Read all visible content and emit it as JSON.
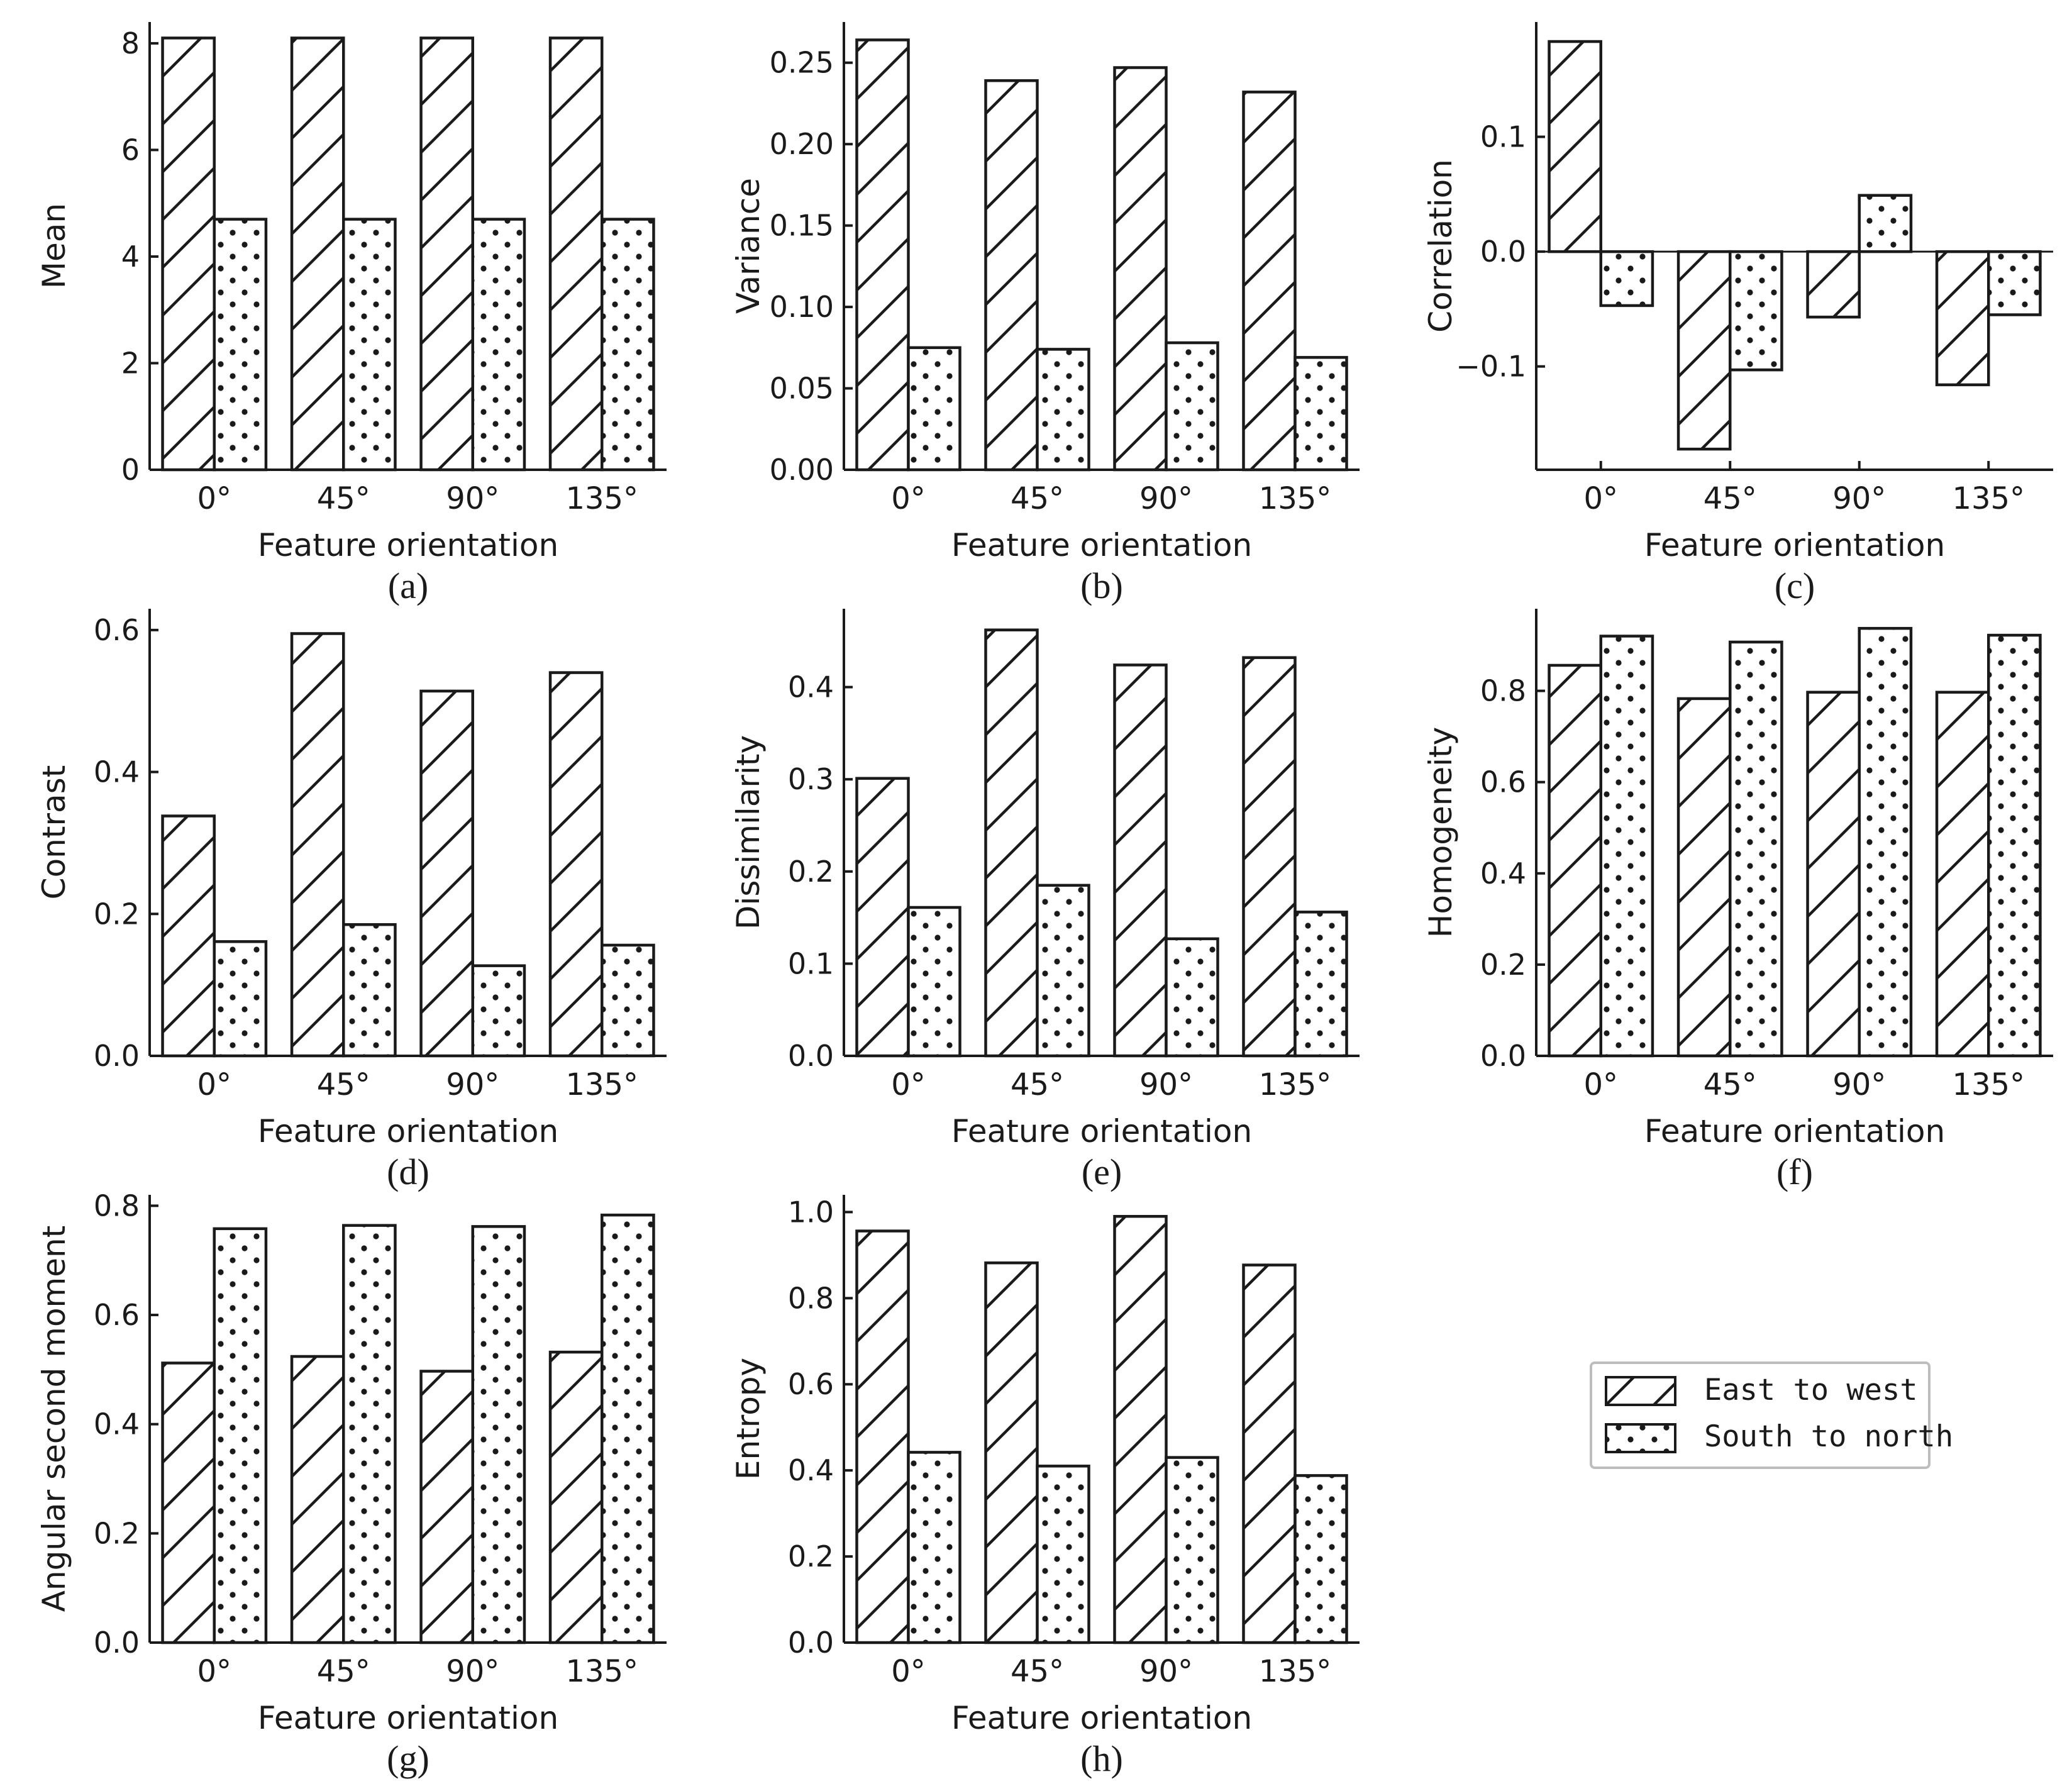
{
  "legend": [
    {
      "name": "East to west",
      "pattern": "hatch"
    },
    {
      "name": "South to north",
      "pattern": "dots"
    }
  ],
  "colors": {
    "stroke": "#1a1a1a",
    "fill": "#ffffff"
  },
  "chart_data": [
    {
      "type": "bar",
      "panel_label": "(a)",
      "xlabel": "Feature orientation",
      "ylabel": "Mean",
      "categories": [
        "0°",
        "45°",
        "90°",
        "135°"
      ],
      "ylim": [
        0,
        8.4
      ],
      "yticks": [
        0,
        2,
        4,
        6,
        8
      ],
      "ytick_labels": [
        "0",
        "2",
        "4",
        "6",
        "8"
      ],
      "series": [
        {
          "name": "East to west",
          "values": [
            8.1,
            8.1,
            8.1,
            8.1
          ]
        },
        {
          "name": "South to north",
          "values": [
            4.7,
            4.7,
            4.7,
            4.7
          ]
        }
      ]
    },
    {
      "type": "bar",
      "panel_label": "(b)",
      "xlabel": "Feature orientation",
      "ylabel": "Variance",
      "categories": [
        "0°",
        "45°",
        "90°",
        "135°"
      ],
      "ylim": [
        0,
        0.275
      ],
      "yticks": [
        0,
        0.05,
        0.1,
        0.15,
        0.2,
        0.25
      ],
      "ytick_labels": [
        "0.00",
        "0.05",
        "0.10",
        "0.15",
        "0.20",
        "0.25"
      ],
      "series": [
        {
          "name": "East to west",
          "values": [
            0.264,
            0.239,
            0.247,
            0.232
          ]
        },
        {
          "name": "South to north",
          "values": [
            0.075,
            0.074,
            0.078,
            0.069
          ]
        }
      ]
    },
    {
      "type": "bar",
      "panel_label": "(c)",
      "xlabel": "Feature orientation",
      "ylabel": "Correlation",
      "categories": [
        "0°",
        "45°",
        "90°",
        "135°"
      ],
      "ylim": [
        -0.19,
        0.2
      ],
      "yticks": [
        -0.1,
        0,
        0.1
      ],
      "ytick_labels": [
        "−0.1",
        "0.0",
        "0.1"
      ],
      "series": [
        {
          "name": "East to west",
          "values": [
            0.183,
            -0.172,
            -0.057,
            -0.116
          ]
        },
        {
          "name": "South to north",
          "values": [
            -0.047,
            -0.103,
            0.049,
            -0.055
          ]
        }
      ]
    },
    {
      "type": "bar",
      "panel_label": "(d)",
      "xlabel": "Feature orientation",
      "ylabel": "Contrast",
      "categories": [
        "0°",
        "45°",
        "90°",
        "135°"
      ],
      "ylim": [
        0,
        0.63
      ],
      "yticks": [
        0,
        0.2,
        0.4,
        0.6
      ],
      "ytick_labels": [
        "0.0",
        "0.2",
        "0.4",
        "0.6"
      ],
      "series": [
        {
          "name": "East to west",
          "values": [
            0.338,
            0.595,
            0.514,
            0.54
          ]
        },
        {
          "name": "South to north",
          "values": [
            0.161,
            0.185,
            0.127,
            0.156
          ]
        }
      ]
    },
    {
      "type": "bar",
      "panel_label": "(e)",
      "xlabel": "Feature orientation",
      "ylabel": "Dissimilarity",
      "categories": [
        "0°",
        "45°",
        "90°",
        "135°"
      ],
      "ylim": [
        0,
        0.485
      ],
      "yticks": [
        0,
        0.1,
        0.2,
        0.3,
        0.4
      ],
      "ytick_labels": [
        "0.0",
        "0.1",
        "0.2",
        "0.3",
        "0.4"
      ],
      "series": [
        {
          "name": "East to west",
          "values": [
            0.301,
            0.462,
            0.424,
            0.432
          ]
        },
        {
          "name": "South to north",
          "values": [
            0.161,
            0.185,
            0.127,
            0.156
          ]
        }
      ]
    },
    {
      "type": "bar",
      "panel_label": "(f)",
      "xlabel": "Feature orientation",
      "ylabel": "Homogeneity",
      "categories": [
        "0°",
        "45°",
        "90°",
        "135°"
      ],
      "ylim": [
        0,
        0.98
      ],
      "yticks": [
        0,
        0.2,
        0.4,
        0.6,
        0.8
      ],
      "ytick_labels": [
        "0.0",
        "0.2",
        "0.4",
        "0.6",
        "0.8"
      ],
      "series": [
        {
          "name": "East to west",
          "values": [
            0.856,
            0.783,
            0.797,
            0.797
          ]
        },
        {
          "name": "South to north",
          "values": [
            0.92,
            0.907,
            0.937,
            0.922
          ]
        }
      ]
    },
    {
      "type": "bar",
      "panel_label": "(g)",
      "xlabel": "Feature orientation",
      "ylabel": "Angular second moment",
      "categories": [
        "0°",
        "45°",
        "90°",
        "135°"
      ],
      "ylim": [
        0,
        0.82
      ],
      "yticks": [
        0,
        0.2,
        0.4,
        0.6,
        0.8
      ],
      "ytick_labels": [
        "0.0",
        "0.2",
        "0.4",
        "0.6",
        "0.8"
      ],
      "series": [
        {
          "name": "East to west",
          "values": [
            0.512,
            0.524,
            0.497,
            0.532
          ]
        },
        {
          "name": "South to north",
          "values": [
            0.758,
            0.764,
            0.762,
            0.783
          ]
        }
      ]
    },
    {
      "type": "bar",
      "panel_label": "(h)",
      "xlabel": "Feature orientation",
      "ylabel": "Entropy",
      "categories": [
        "0°",
        "45°",
        "90°",
        "135°"
      ],
      "ylim": [
        0,
        1.04
      ],
      "yticks": [
        0,
        0.2,
        0.4,
        0.6,
        0.8,
        1.0
      ],
      "ytick_labels": [
        "0.0",
        "0.2",
        "0.4",
        "0.6",
        "0.8",
        "1.0"
      ],
      "series": [
        {
          "name": "East to west",
          "values": [
            0.956,
            0.882,
            0.99,
            0.877
          ]
        },
        {
          "name": "South to north",
          "values": [
            0.442,
            0.41,
            0.43,
            0.388
          ]
        }
      ]
    }
  ]
}
